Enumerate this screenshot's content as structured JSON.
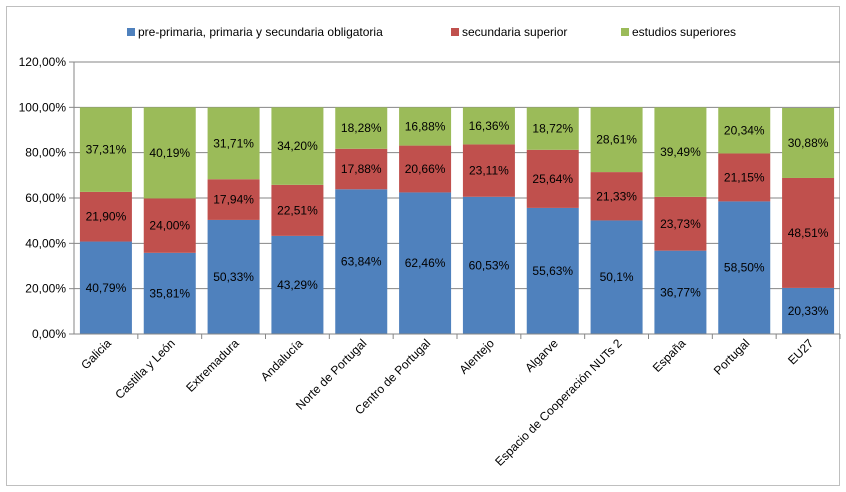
{
  "chart_data": {
    "type": "bar",
    "stacked": true,
    "title": "",
    "xlabel": "",
    "ylabel": "",
    "ylim": [
      0,
      120
    ],
    "y_ticks": [
      "0,00%",
      "20,00%",
      "40,00%",
      "60,00%",
      "80,00%",
      "100,00%",
      "120,00%"
    ],
    "grid": true,
    "legend_position": "top",
    "categories": [
      "Galicia",
      "Castilla y León",
      "Extremadura",
      "Andalucía",
      "Norte de Portugal",
      "Centro de Portugal",
      "Alentejo",
      "Algarve",
      "Espacio de Cooperación NUTs 2",
      "España",
      "Portugal",
      "EU27"
    ],
    "series": [
      {
        "name": "pre-primaria, primaria y secundaria obligatoria",
        "color": "#4f81bd",
        "values": [
          40.79,
          35.81,
          50.33,
          43.29,
          63.84,
          62.46,
          60.53,
          55.63,
          50.1,
          36.77,
          58.5,
          20.33
        ],
        "labels": [
          "40,79%",
          "35,81%",
          "50,33%",
          "43,29%",
          "63,84%",
          "62,46%",
          "60,53%",
          "55,63%",
          "50,1%",
          "36,77%",
          "58,50%",
          "20,33%"
        ]
      },
      {
        "name": "secundaria superior",
        "color": "#c0504d",
        "values": [
          21.9,
          24.0,
          17.94,
          22.51,
          17.88,
          20.66,
          23.11,
          25.64,
          21.33,
          23.73,
          21.15,
          48.51
        ],
        "labels": [
          "21,90%",
          "24,00%",
          "17,94%",
          "22,51%",
          "17,88%",
          "20,66%",
          "23,11%",
          "25,64%",
          "21,33%",
          "23,73%",
          "21,15%",
          "48,51%"
        ]
      },
      {
        "name": "estudios superiores",
        "color": "#9bbb59",
        "values": [
          37.31,
          40.19,
          31.71,
          34.2,
          18.28,
          16.88,
          16.36,
          18.72,
          28.61,
          39.49,
          20.34,
          30.88
        ],
        "labels": [
          "37,31%",
          "40,19%",
          "31,71%",
          "34,20%",
          "18,28%",
          "16,88%",
          "16,36%",
          "18,72%",
          "28,61%",
          "39,49%",
          "20,34%",
          "30,88%"
        ]
      }
    ]
  }
}
